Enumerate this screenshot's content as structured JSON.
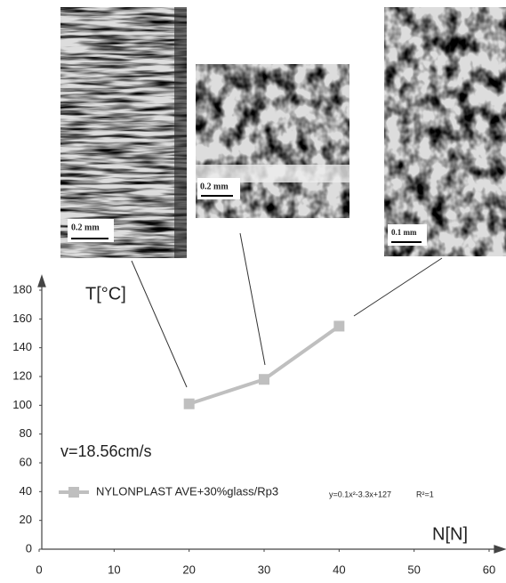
{
  "chart_data": {
    "type": "line",
    "x_label": "N[N]",
    "y_label": "T[°C]",
    "x": [
      20,
      30,
      40
    ],
    "series": [
      {
        "name": "NYLONPLAST AVE+30%glass/Rp3",
        "color": "#bfbfbf",
        "values": [
          101,
          118,
          155
        ]
      }
    ],
    "xlim": [
      0,
      60
    ],
    "xticks": [
      0,
      10,
      20,
      30,
      40,
      50,
      60
    ],
    "ylim": [
      0,
      180
    ],
    "yticks": [
      0,
      20,
      40,
      60,
      80,
      100,
      120,
      140,
      160,
      180
    ],
    "annotations": [
      "v=18.56cm/s",
      "y=0.1x²-3.3x+127",
      "R²=1"
    ],
    "scale_bars": [
      "0.2 mm",
      "0.2 mm",
      "0.1 mm"
    ]
  }
}
